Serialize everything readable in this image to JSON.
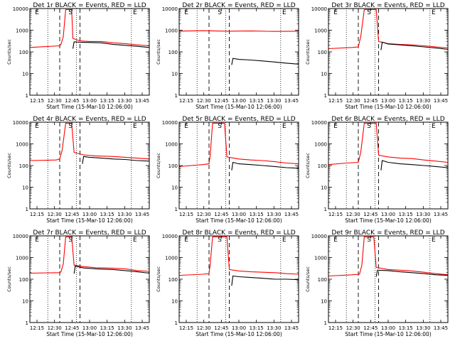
{
  "chart_data": [
    {
      "type": "line",
      "title": "Det 1r BLACK = Events, RED = LLD",
      "xlabel": "Start Time (15-Mar-10 12:06:00)",
      "ylabel": "Counts/sec",
      "x_ticks": [
        "12:15",
        "12:30",
        "12:45",
        "13:00",
        "13:15",
        "13:30",
        "13:45"
      ],
      "y_ticks": [
        "1",
        "10",
        "100",
        "1000",
        "10000"
      ],
      "y_scale": "log",
      "ylim": [
        1,
        10000
      ],
      "markers": [
        {
          "label": "E",
          "pos": "left"
        },
        {
          "label": "S",
          "pos": "mid"
        },
        {
          "label": "E",
          "pos": "right"
        }
      ],
      "series": [
        {
          "name": "RED",
          "color": "#ff0000",
          "x": [
            0,
            0.25,
            0.26,
            0.28,
            0.3,
            0.35,
            0.36,
            0.42,
            0.5,
            0.6,
            0.7,
            0.8,
            0.9,
            1.0
          ],
          "y": [
            160,
            190,
            220,
            500,
            9000,
            9000,
            420,
            320,
            300,
            300,
            260,
            240,
            210,
            190
          ]
        },
        {
          "name": "BLACK",
          "color": "#000000",
          "x": [
            0.36,
            0.37,
            0.42,
            0.5,
            0.6,
            0.7,
            0.8,
            0.9,
            1.0
          ],
          "y": [
            140,
            290,
            280,
            270,
            260,
            220,
            200,
            180,
            160
          ]
        }
      ]
    },
    {
      "type": "line",
      "title": "Det 2r BLACK = Events, RED = LLD",
      "xlabel": "Start Time (15-Mar-10 12:06:00)",
      "ylabel": "Counts/sec",
      "x_ticks": [
        "12:15",
        "12:30",
        "12:45",
        "13:00",
        "13:15",
        "13:30",
        "13:45"
      ],
      "y_ticks": [
        "1",
        "10",
        "100",
        "1000",
        "10000"
      ],
      "y_scale": "log",
      "ylim": [
        1,
        10000
      ],
      "markers": [
        {
          "label": "E",
          "pos": "left"
        },
        {
          "label": "S",
          "pos": "mid"
        },
        {
          "label": "E",
          "pos": "right"
        }
      ],
      "series": [
        {
          "name": "RED",
          "color": "#ff0000",
          "x": [
            0,
            0.2,
            0.4,
            0.6,
            0.8,
            1.0
          ],
          "y": [
            900,
            950,
            900,
            920,
            880,
            900
          ]
        },
        {
          "name": "BLACK",
          "color": "#000000",
          "x": [
            0.44,
            0.45,
            0.5,
            0.6,
            0.7,
            0.8,
            0.9,
            1.0
          ],
          "y": [
            25,
            50,
            45,
            42,
            38,
            34,
            30,
            27
          ]
        }
      ]
    },
    {
      "type": "line",
      "title": "Det 3r BLACK = Events, RED = LLD",
      "xlabel": "Start Time (15-Mar-10 12:06:00)",
      "ylabel": "Counts/sec",
      "x_ticks": [
        "12:15",
        "12:30",
        "12:45",
        "13:00",
        "13:15",
        "13:30",
        "13:45"
      ],
      "y_ticks": [
        "1",
        "10",
        "100",
        "1000",
        "10000"
      ],
      "y_scale": "log",
      "ylim": [
        1,
        10000
      ],
      "markers": [
        {
          "label": "E",
          "pos": "left"
        },
        {
          "label": "S",
          "pos": "mid"
        },
        {
          "label": "E",
          "pos": "right"
        }
      ],
      "series": [
        {
          "name": "RED",
          "color": "#ff0000",
          "x": [
            0,
            0.2,
            0.25,
            0.27,
            0.3,
            0.4,
            0.42,
            0.5,
            0.6,
            0.7,
            0.8,
            0.9,
            1.0
          ],
          "y": [
            140,
            160,
            170,
            500,
            9000,
            9000,
            300,
            240,
            220,
            210,
            190,
            170,
            150
          ]
        },
        {
          "name": "BLACK",
          "color": "#000000",
          "x": [
            0.44,
            0.45,
            0.5,
            0.6,
            0.7,
            0.8,
            0.9,
            1.0
          ],
          "y": [
            120,
            280,
            230,
            210,
            190,
            170,
            150,
            130
          ]
        }
      ]
    },
    {
      "type": "line",
      "title": "Det 4r BLACK = Events, RED = LLD",
      "xlabel": "Start Time (15-Mar-10 12:06:00)",
      "ylabel": "Counts/sec",
      "x_ticks": [
        "12:15",
        "12:30",
        "12:45",
        "13:00",
        "13:15",
        "13:30",
        "13:45"
      ],
      "y_ticks": [
        "1",
        "10",
        "100",
        "1000",
        "10000"
      ],
      "y_scale": "log",
      "ylim": [
        1,
        10000
      ],
      "markers": [
        {
          "label": "E",
          "pos": "left"
        },
        {
          "label": "S",
          "pos": "mid"
        },
        {
          "label": "E",
          "pos": "right"
        }
      ],
      "series": [
        {
          "name": "RED",
          "color": "#ff0000",
          "x": [
            0,
            0.22,
            0.25,
            0.27,
            0.3,
            0.35,
            0.37,
            0.45,
            0.55,
            0.7,
            0.8,
            0.9,
            1.0
          ],
          "y": [
            170,
            180,
            200,
            500,
            9000,
            9000,
            400,
            310,
            280,
            260,
            240,
            220,
            200
          ]
        },
        {
          "name": "BLACK",
          "color": "#000000",
          "x": [
            0.44,
            0.45,
            0.5,
            0.6,
            0.7,
            0.8,
            0.9,
            1.0
          ],
          "y": [
            120,
            260,
            240,
            220,
            200,
            190,
            170,
            160
          ]
        }
      ]
    },
    {
      "type": "line",
      "title": "Det 5r BLACK = Events, RED = LLD",
      "xlabel": "Start Time (15-Mar-10 12:06:00)",
      "ylabel": "Counts/sec",
      "x_ticks": [
        "12:15",
        "12:30",
        "12:45",
        "13:00",
        "13:15",
        "13:30",
        "13:45"
      ],
      "y_ticks": [
        "1",
        "10",
        "100",
        "1000",
        "10000"
      ],
      "y_scale": "log",
      "ylim": [
        1,
        10000
      ],
      "markers": [
        {
          "label": "E",
          "pos": "left"
        },
        {
          "label": "S",
          "pos": "mid"
        },
        {
          "label": "E",
          "pos": "right"
        }
      ],
      "series": [
        {
          "name": "RED",
          "color": "#ff0000",
          "x": [
            0,
            0.2,
            0.25,
            0.26,
            0.28,
            0.38,
            0.4,
            0.5,
            0.6,
            0.7,
            0.8,
            0.9,
            1.0
          ],
          "y": [
            90,
            110,
            120,
            300,
            9000,
            9000,
            250,
            200,
            180,
            170,
            150,
            130,
            120
          ]
        },
        {
          "name": "BLACK",
          "color": "#000000",
          "x": [
            0.44,
            0.45,
            0.5,
            0.6,
            0.7,
            0.8,
            0.9,
            1.0
          ],
          "y": [
            60,
            140,
            120,
            110,
            100,
            90,
            80,
            75
          ]
        }
      ]
    },
    {
      "type": "line",
      "title": "Det 6r BLACK = Events, RED = LLD",
      "xlabel": "Start Time (15-Mar-10 12:06:00)",
      "ylabel": "Counts/sec",
      "x_ticks": [
        "12:15",
        "12:30",
        "12:45",
        "13:00",
        "13:15",
        "13:30",
        "13:45"
      ],
      "y_ticks": [
        "1",
        "10",
        "100",
        "1000",
        "10000"
      ],
      "y_scale": "log",
      "ylim": [
        1,
        10000
      ],
      "markers": [
        {
          "label": "E",
          "pos": "left"
        },
        {
          "label": "S",
          "pos": "mid"
        },
        {
          "label": "E",
          "pos": "right"
        }
      ],
      "series": [
        {
          "name": "RED",
          "color": "#ff0000",
          "x": [
            0,
            0.15,
            0.25,
            0.27,
            0.3,
            0.4,
            0.42,
            0.5,
            0.6,
            0.7,
            0.8,
            0.9,
            1.0
          ],
          "y": [
            110,
            130,
            140,
            400,
            9000,
            9000,
            300,
            250,
            220,
            210,
            180,
            160,
            140
          ]
        },
        {
          "name": "BLACK",
          "color": "#000000",
          "x": [
            0.44,
            0.45,
            0.5,
            0.6,
            0.7,
            0.8,
            0.9,
            1.0
          ],
          "y": [
            60,
            170,
            140,
            120,
            110,
            100,
            90,
            80
          ]
        }
      ]
    },
    {
      "type": "line",
      "title": "Det 7r BLACK = Events, RED = LLD",
      "xlabel": "Start Time (15-Mar-10 12:06:00)",
      "ylabel": "Counts/sec",
      "x_ticks": [
        "12:15",
        "12:30",
        "12:45",
        "13:00",
        "13:15",
        "13:30",
        "13:45"
      ],
      "y_ticks": [
        "1",
        "10",
        "100",
        "1000",
        "10000"
      ],
      "y_scale": "log",
      "ylim": [
        1,
        10000
      ],
      "markers": [
        {
          "label": "E",
          "pos": "left"
        },
        {
          "label": "S",
          "pos": "mid"
        },
        {
          "label": "E",
          "pos": "right"
        }
      ],
      "series": [
        {
          "name": "RED",
          "color": "#ff0000",
          "x": [
            0,
            0.25,
            0.26,
            0.28,
            0.3,
            0.35,
            0.37,
            0.45,
            0.55,
            0.7,
            0.8,
            0.9,
            1.0
          ],
          "y": [
            190,
            200,
            220,
            500,
            9000,
            9000,
            450,
            380,
            340,
            320,
            300,
            250,
            230
          ]
        },
        {
          "name": "BLACK",
          "color": "#000000",
          "x": [
            0.37,
            0.38,
            0.45,
            0.55,
            0.7,
            0.8,
            0.9,
            1.0
          ],
          "y": [
            180,
            400,
            330,
            300,
            280,
            250,
            220,
            190
          ]
        }
      ]
    },
    {
      "type": "line",
      "title": "Det 8r BLACK = Events, RED = LLD",
      "xlabel": "Start Time (15-Mar-10 12:06:00)",
      "ylabel": "Counts/sec",
      "x_ticks": [
        "12:15",
        "12:30",
        "12:45",
        "13:00",
        "13:15",
        "13:30",
        "13:45"
      ],
      "y_ticks": [
        "1",
        "10",
        "100",
        "1000",
        "10000"
      ],
      "y_scale": "log",
      "ylim": [
        1,
        10000
      ],
      "markers": [
        {
          "label": "E",
          "pos": "left"
        },
        {
          "label": "S",
          "pos": "mid"
        },
        {
          "label": "E",
          "pos": "right"
        }
      ],
      "series": [
        {
          "name": "RED",
          "color": "#ff0000",
          "x": [
            0,
            0.2,
            0.25,
            0.26,
            0.28,
            0.4,
            0.42,
            0.5,
            0.6,
            0.7,
            0.8,
            0.9,
            1.0
          ],
          "y": [
            150,
            170,
            180,
            500,
            9000,
            9000,
            280,
            240,
            220,
            210,
            200,
            180,
            170
          ]
        },
        {
          "name": "BLACK",
          "color": "#000000",
          "x": [
            0.44,
            0.45,
            0.5,
            0.6,
            0.7,
            0.8,
            0.9,
            1.0
          ],
          "y": [
            50,
            140,
            130,
            120,
            110,
            100,
            100,
            95
          ]
        }
      ]
    },
    {
      "type": "line",
      "title": "Det 9r BLACK = Events, RED = LLD",
      "xlabel": "Start Time (15-Mar-10 12:06:00)",
      "ylabel": "Counts/sec",
      "x_ticks": [
        "12:15",
        "12:30",
        "12:45",
        "13:00",
        "13:15",
        "13:30",
        "13:45"
      ],
      "y_ticks": [
        "1",
        "10",
        "100",
        "1000",
        "10000"
      ],
      "y_scale": "log",
      "ylim": [
        1,
        10000
      ],
      "markers": [
        {
          "label": "E",
          "pos": "left"
        },
        {
          "label": "S",
          "pos": "mid"
        },
        {
          "label": "E",
          "pos": "right"
        }
      ],
      "series": [
        {
          "name": "RED",
          "color": "#ff0000",
          "x": [
            0,
            0.2,
            0.26,
            0.28,
            0.3,
            0.38,
            0.4,
            0.5,
            0.6,
            0.7,
            0.8,
            0.9,
            1.0
          ],
          "y": [
            140,
            160,
            170,
            450,
            9000,
            9000,
            350,
            280,
            260,
            240,
            210,
            180,
            160
          ]
        },
        {
          "name": "BLACK",
          "color": "#000000",
          "x": [
            0.4,
            0.41,
            0.5,
            0.6,
            0.7,
            0.8,
            0.9,
            1.0
          ],
          "y": [
            130,
            260,
            250,
            220,
            200,
            180,
            160,
            150
          ]
        }
      ]
    }
  ]
}
